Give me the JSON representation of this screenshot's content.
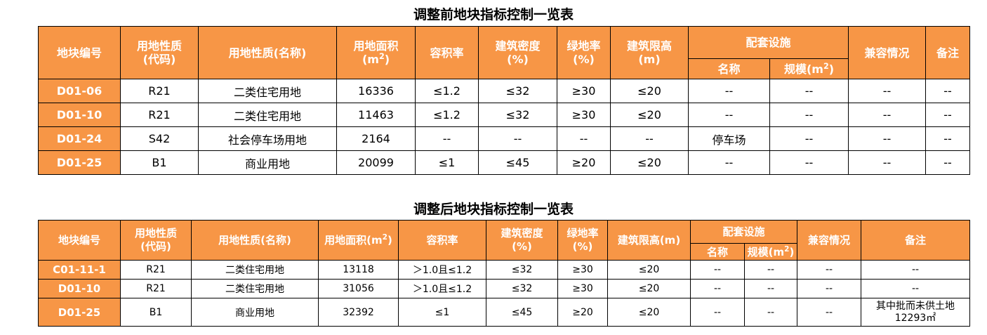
{
  "table1": {
    "title": "调整前地块指标控制一览表",
    "headers": {
      "id": "地块编号",
      "code_l1": "用地性质",
      "code_l2": "(代码)",
      "name": "用地性质(名称)",
      "area_l1": "用地面积",
      "area_l2a": "(m",
      "area_sup": "2",
      "area_l2b": ")",
      "far": "容积率",
      "density_l1": "建筑密度",
      "density_l2": "(%)",
      "green_l1": "绿地率",
      "green_l2": "(%)",
      "height_l1": "建筑限高",
      "height_l2": "(m)",
      "facility": "配套设施",
      "fac_name": "名称",
      "fac_scale_a": "规模(m",
      "fac_scale_sup": "2",
      "fac_scale_b": ")",
      "compat": "兼容情况",
      "remark": "备注"
    },
    "rows": [
      {
        "id": "D01-06",
        "code": "R21",
        "name": "二类住宅用地",
        "area": "16336",
        "far": "≤1.2",
        "density": "≤32",
        "green": "≥30",
        "height": "≤20",
        "fac_name": "--",
        "fac_scale": "--",
        "compat": "--",
        "remark": "--"
      },
      {
        "id": "D01-10",
        "code": "R21",
        "name": "二类住宅用地",
        "area": "11463",
        "far": "≤1.2",
        "density": "≤32",
        "green": "≥30",
        "height": "≤20",
        "fac_name": "--",
        "fac_scale": "--",
        "compat": "--",
        "remark": "--"
      },
      {
        "id": "D01-24",
        "code": "S42",
        "name": "社会停车场用地",
        "area": "2164",
        "far": "--",
        "density": "--",
        "green": "--",
        "height": "--",
        "fac_name": "停车场",
        "fac_scale": "--",
        "compat": "--",
        "remark": "--"
      },
      {
        "id": "D01-25",
        "code": "B1",
        "name": "商业用地",
        "area": "20099",
        "far": "≤1",
        "density": "≤45",
        "green": "≥20",
        "height": "≤20",
        "fac_name": "--",
        "fac_scale": "--",
        "compat": "--",
        "remark": "--"
      }
    ]
  },
  "table2": {
    "title": "调整后地块指标控制一览表",
    "headers": {
      "id": "地块编号",
      "code_l1": "用地性质",
      "code_l2": "(代码)",
      "name": "用地性质(名称)",
      "area_a": "用地面积(m",
      "area_sup": "2",
      "area_b": ")",
      "far": "容积率",
      "density_l1": "建筑密度",
      "density_l2": "(%)",
      "green_l1": "绿地率",
      "green_l2": "(%)",
      "height": "建筑限高(m)",
      "facility": "配套设施",
      "fac_name": "名称",
      "fac_scale_a": "规模(m",
      "fac_scale_sup": "2",
      "fac_scale_b": ")",
      "compat": "兼容情况",
      "remark": "备注"
    },
    "rows": [
      {
        "id": "C01-11-1",
        "code": "R21",
        "name": "二类住宅用地",
        "area": "13118",
        "far": "＞1.0且≤1.2",
        "density": "≤32",
        "green": "≥30",
        "height": "≤20",
        "fac_name": "--",
        "fac_scale": "--",
        "compat": "--",
        "remark_l1": "--",
        "remark_l2": ""
      },
      {
        "id": "D01-10",
        "code": "R21",
        "name": "二类住宅用地",
        "area": "31056",
        "far": "＞1.0且≤1.2",
        "density": "≤32",
        "green": "≥30",
        "height": "≤20",
        "fac_name": "--",
        "fac_scale": "--",
        "compat": "--",
        "remark_l1": "--",
        "remark_l2": ""
      },
      {
        "id": "D01-25",
        "code": "B1",
        "name": "商业用地",
        "area": "32392",
        "far": "≤1",
        "density": "≤45",
        "green": "≥20",
        "height": "≤20",
        "fac_name": "--",
        "fac_scale": "--",
        "compat": "--",
        "remark_l1": "其中批而未供土地",
        "remark_l2": "12293㎡"
      }
    ]
  }
}
